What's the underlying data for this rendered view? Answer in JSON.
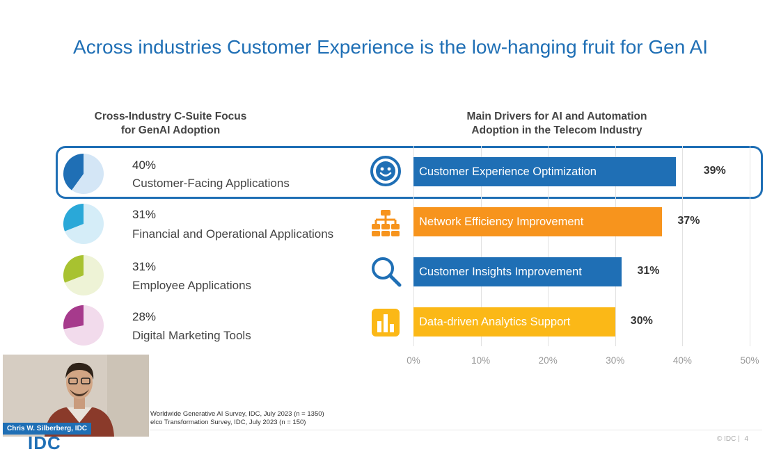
{
  "slide": {
    "title": "Across industries Customer Experience is the low-hanging fruit for Gen AI",
    "page_number": "4",
    "copyright": "© IDC |"
  },
  "left_panel": {
    "heading_line1": "Cross-Industry C-Suite Focus",
    "heading_line2": "for GenAI Adoption",
    "items": [
      {
        "pct_label": "40%",
        "label": "Customer-Facing Applications",
        "value": 40,
        "color": "#1f6fb5",
        "light": "#d4e6f6"
      },
      {
        "pct_label": "31%",
        "label": "Financial and Operational Applications",
        "value": 31,
        "color": "#2aa8d8",
        "light": "#d5edf8"
      },
      {
        "pct_label": "31%",
        "label": "Employee Applications",
        "value": 31,
        "color": "#a8c230",
        "light": "#eef3d6"
      },
      {
        "pct_label": "28%",
        "label": "Digital Marketing Tools",
        "value": 28,
        "color": "#a63a8c",
        "light": "#f2dbec"
      }
    ]
  },
  "chart_data": {
    "type": "bar",
    "orientation": "horizontal",
    "title_line1": "Main Drivers for AI and Automation",
    "title_line2": "Adoption in the Telecom Industry",
    "categories": [
      "Customer Experience Optimization",
      "Network Efficiency Improvement",
      "Customer Insights Improvement",
      "Data-driven Analytics Support"
    ],
    "values": [
      39,
      37,
      31,
      30
    ],
    "value_labels": [
      "39%",
      "37%",
      "31%",
      "30%"
    ],
    "colors": [
      "#1f6fb5",
      "#f7941d",
      "#1f6fb5",
      "#fbb817"
    ],
    "icons": [
      "smiley-icon",
      "network-icon",
      "magnifier-icon",
      "bar-chart-icon"
    ],
    "xlim": [
      0,
      50
    ],
    "ticks": [
      "0%",
      "10%",
      "20%",
      "30%",
      "40%",
      "50%"
    ],
    "grid": true
  },
  "sources": {
    "line1": "Worldwide Generative AI Survey, IDC, July 2023 (n = 1350)",
    "line2": "elco Transformation Survey, IDC, July 2023 (n = 150)"
  },
  "video": {
    "speaker_name": "Chris W. Silberberg, IDC"
  },
  "logo": {
    "text": "IDC"
  }
}
